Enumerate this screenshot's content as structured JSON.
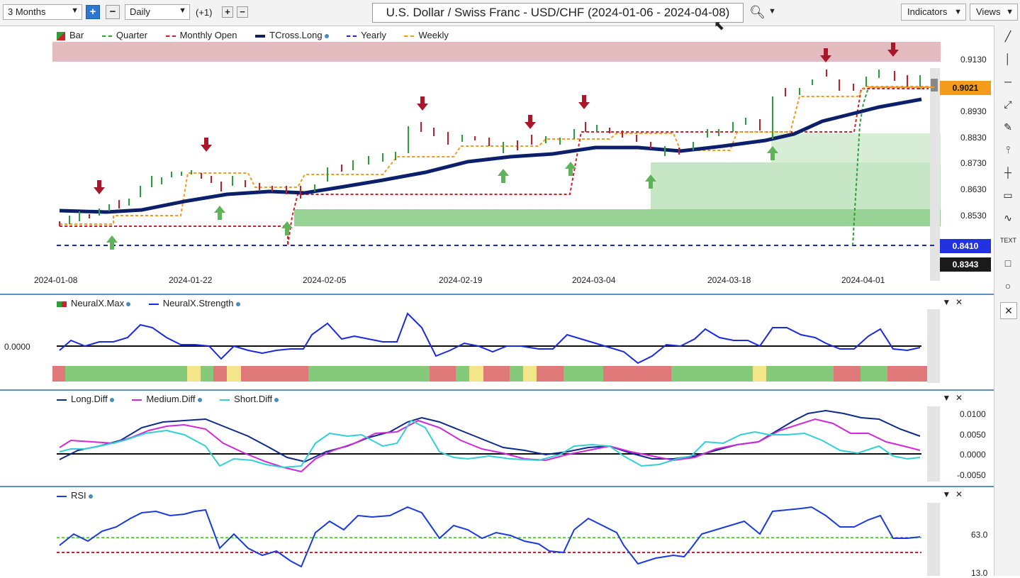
{
  "toolbar": {
    "period": "3 Months",
    "interval": "Daily",
    "offset": "(+1)",
    "symbol_title": "U.S. Dollar / Swiss Franc - USD/CHF (2024-01-06 - 2024-04-08)",
    "indicators_label": "Indicators",
    "views_label": "Views"
  },
  "main_chart": {
    "legend": [
      {
        "label": "Bar",
        "color": "#2e9e3a"
      },
      {
        "label": "Quarter",
        "color": "#2e9e3a"
      },
      {
        "label": "Monthly Open",
        "color": "#d0202a"
      },
      {
        "label": "TCross.Long",
        "color": "#0b1f6b"
      },
      {
        "label": "Yearly",
        "color": "#1a2ac0"
      },
      {
        "label": "Weekly",
        "color": "#f39b1a"
      }
    ],
    "price_axis": [
      "0.9130",
      "0.8930",
      "0.8830",
      "0.8730",
      "0.8630",
      "0.8530"
    ],
    "current_price": "0.9021",
    "yearly_level": "0.8410",
    "low_level": "0.8343",
    "date_axis": [
      "2024-01-08",
      "2024-01-22",
      "2024-02-05",
      "2024-02-19",
      "2024-03-04",
      "2024-03-18",
      "2024-04-01"
    ]
  },
  "neuralx": {
    "legend": [
      {
        "label": "NeuralX.Max",
        "color": "#2e9e3a"
      },
      {
        "label": "NeuralX.Strength",
        "color": "#1a2ae0"
      }
    ],
    "zero_label": "0.0000",
    "strength_bar_colors": [
      "#e07a7a",
      "#85c97a",
      "#f2e58a"
    ]
  },
  "diff": {
    "legend": [
      {
        "label": "Long.Diff",
        "color": "#0b2a8a"
      },
      {
        "label": "Medium.Diff",
        "color": "#d02ad8"
      },
      {
        "label": "Short.Diff",
        "color": "#32cfd4"
      }
    ],
    "axis": [
      "0.0100",
      "0.0050",
      "0.0000",
      "-0.0050"
    ]
  },
  "rsi": {
    "legend": [
      {
        "label": "RSI",
        "color": "#1a3ae0"
      }
    ],
    "axis": [
      "63.0",
      "13.0"
    ]
  }
}
